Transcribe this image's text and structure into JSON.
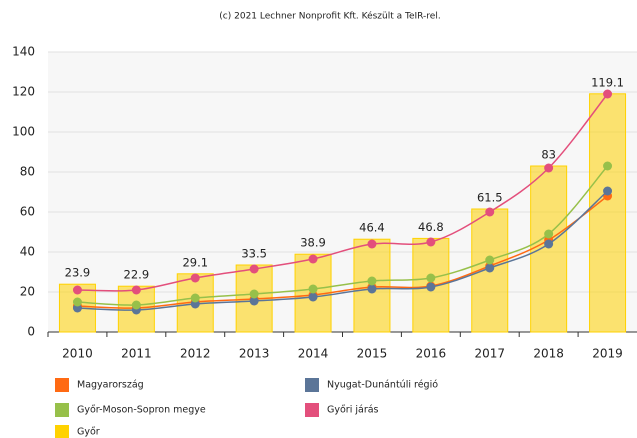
{
  "chart_data": {
    "type": "combo",
    "title": "(c) 2021 Lechner Nonprofit Kft. Készült a TeIR-rel.",
    "categories": [
      "2010",
      "2011",
      "2012",
      "2013",
      "2014",
      "2015",
      "2016",
      "2017",
      "2018",
      "2019"
    ],
    "ylim": [
      0,
      140
    ],
    "yticks": [
      0,
      20,
      40,
      60,
      80,
      100,
      120,
      140
    ],
    "grid": true,
    "series": [
      {
        "name": "Magyarország",
        "color": "#ff6a13",
        "mark": "line",
        "values": [
          13,
          12,
          15,
          16.5,
          18.5,
          22.5,
          23,
          33,
          46,
          68
        ]
      },
      {
        "name": "Nyugat-Dunántúli régió",
        "color": "#5b7598",
        "mark": "line",
        "values": [
          12,
          11,
          14,
          15.5,
          17.5,
          21.5,
          22.5,
          32,
          44,
          70.5
        ]
      },
      {
        "name": "Győr-Moson-Sopron megye",
        "color": "#97c04a",
        "mark": "line",
        "values": [
          15,
          13.5,
          17,
          19,
          21.5,
          25.5,
          27,
          36,
          49,
          83
        ]
      },
      {
        "name": "Győri járás",
        "color": "#e34f7c",
        "mark": "line",
        "values": [
          21,
          21,
          27,
          31.5,
          36.5,
          44,
          45,
          60,
          82,
          119
        ]
      },
      {
        "name": "Győr",
        "color": "#ffd200",
        "mark": "bar",
        "values": [
          23.9,
          22.9,
          29.1,
          33.5,
          38.9,
          46.4,
          46.8,
          61.5,
          83,
          119.1
        ]
      }
    ]
  }
}
